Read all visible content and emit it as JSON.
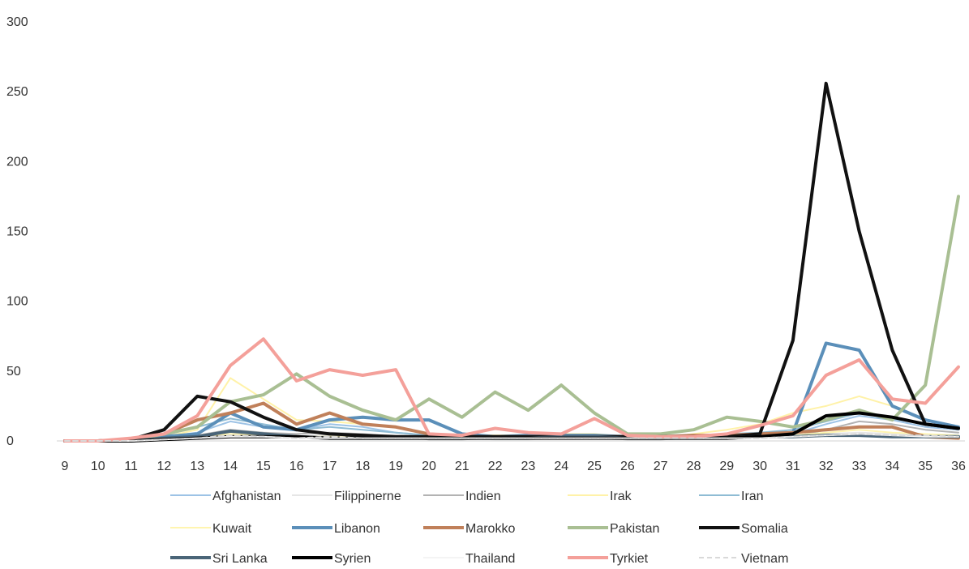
{
  "chart_data": {
    "type": "line",
    "title": "",
    "xlabel": "",
    "ylabel": "",
    "x": [
      9,
      10,
      11,
      12,
      13,
      14,
      15,
      16,
      17,
      18,
      19,
      20,
      21,
      22,
      23,
      24,
      25,
      26,
      27,
      28,
      29,
      30,
      31,
      32,
      33,
      34,
      35,
      36
    ],
    "ylim": [
      0,
      300
    ],
    "yticks": [
      0,
      50,
      100,
      150,
      200,
      250,
      300
    ],
    "grid": false,
    "legend_position": "bottom",
    "series": [
      {
        "name": "Afghanistan",
        "color": "#9dc3e6",
        "width": 2,
        "values": [
          0,
          0,
          1,
          3,
          6,
          14,
          10,
          8,
          12,
          10,
          6,
          4,
          3,
          2,
          2,
          3,
          3,
          2,
          2,
          3,
          3,
          4,
          5,
          12,
          18,
          15,
          10,
          8
        ]
      },
      {
        "name": "Filippinerne",
        "color": "#e6e6e6",
        "width": 2,
        "values": [
          0,
          0,
          1,
          2,
          3,
          5,
          4,
          3,
          4,
          3,
          2,
          2,
          2,
          1,
          1,
          2,
          2,
          1,
          1,
          2,
          2,
          3,
          4,
          5,
          6,
          5,
          4,
          3
        ]
      },
      {
        "name": "Indien",
        "color": "#b3b3b3",
        "width": 2,
        "values": [
          0,
          0,
          1,
          2,
          4,
          8,
          6,
          5,
          6,
          5,
          3,
          1,
          1,
          2,
          2,
          2,
          2,
          1,
          1,
          2,
          2,
          2,
          3,
          8,
          14,
          12,
          8,
          6
        ]
      },
      {
        "name": "Irak",
        "color": "#fff2a8",
        "width": 2,
        "values": [
          0,
          0,
          1,
          3,
          8,
          45,
          30,
          15,
          14,
          12,
          10,
          5,
          4,
          4,
          4,
          5,
          5,
          3,
          2,
          5,
          8,
          12,
          20,
          25,
          32,
          25,
          15,
          10
        ]
      },
      {
        "name": "Iran",
        "color": "#8fbcd4",
        "width": 2,
        "values": [
          0,
          0,
          1,
          4,
          10,
          16,
          12,
          8,
          10,
          8,
          6,
          4,
          3,
          3,
          3,
          3,
          4,
          3,
          3,
          4,
          5,
          6,
          8,
          14,
          20,
          16,
          12,
          10
        ]
      },
      {
        "name": "Kuwait",
        "color": "#fff5b0",
        "width": 2,
        "values": [
          0,
          0,
          1,
          2,
          3,
          5,
          4,
          3,
          3,
          3,
          2,
          2,
          2,
          2,
          2,
          2,
          2,
          2,
          2,
          2,
          2,
          3,
          4,
          6,
          8,
          6,
          5,
          4
        ]
      },
      {
        "name": "Libanon",
        "color": "#5b8fb9",
        "width": 4,
        "values": [
          0,
          0,
          1,
          3,
          5,
          20,
          10,
          8,
          15,
          17,
          15,
          15,
          5,
          3,
          4,
          4,
          4,
          3,
          3,
          3,
          4,
          5,
          6,
          70,
          65,
          25,
          15,
          10
        ]
      },
      {
        "name": "Marokko",
        "color": "#c0805a",
        "width": 4,
        "values": [
          0,
          0,
          1,
          5,
          15,
          20,
          27,
          12,
          20,
          12,
          10,
          5,
          3,
          3,
          3,
          3,
          3,
          3,
          3,
          4,
          4,
          5,
          6,
          8,
          10,
          10,
          3,
          2
        ]
      },
      {
        "name": "Pakistan",
        "color": "#a9bf93",
        "width": 4,
        "values": [
          0,
          0,
          1,
          5,
          10,
          28,
          33,
          48,
          32,
          22,
          15,
          30,
          17,
          35,
          22,
          40,
          20,
          5,
          5,
          8,
          17,
          14,
          10,
          15,
          22,
          15,
          40,
          175
        ]
      },
      {
        "name": "Somalia",
        "color": "#111111",
        "width": 4,
        "values": [
          0,
          0,
          1,
          8,
          32,
          28,
          17,
          8,
          5,
          4,
          3,
          3,
          3,
          3,
          3,
          3,
          3,
          3,
          3,
          3,
          3,
          5,
          72,
          256,
          150,
          65,
          12,
          9
        ]
      },
      {
        "name": "Sri Lanka",
        "color": "#4a6578",
        "width": 4,
        "values": [
          0,
          0,
          0,
          2,
          3,
          7,
          5,
          3,
          2,
          2,
          2,
          2,
          2,
          2,
          2,
          3,
          3,
          2,
          2,
          2,
          2,
          3,
          3,
          4,
          4,
          3,
          3,
          3
        ]
      },
      {
        "name": "Syrien",
        "color": "#000000",
        "width": 4,
        "values": [
          0,
          0,
          0,
          1,
          2,
          3,
          3,
          3,
          2,
          2,
          2,
          2,
          2,
          2,
          2,
          2,
          2,
          2,
          2,
          2,
          2,
          3,
          5,
          18,
          20,
          17,
          12,
          9
        ]
      },
      {
        "name": "Thailand",
        "color": "#f4f4f4",
        "width": 2,
        "values": [
          0,
          0,
          0,
          1,
          2,
          3,
          3,
          2,
          2,
          2,
          2,
          2,
          2,
          2,
          2,
          2,
          2,
          2,
          2,
          2,
          2,
          2,
          3,
          4,
          5,
          4,
          3,
          3
        ]
      },
      {
        "name": "Tyrkiet",
        "color": "#f4a09a",
        "width": 4,
        "values": [
          0,
          0,
          2,
          5,
          18,
          54,
          73,
          43,
          51,
          47,
          51,
          5,
          4,
          9,
          6,
          5,
          16,
          4,
          3,
          3,
          5,
          11,
          18,
          47,
          58,
          30,
          27,
          53
        ]
      },
      {
        "name": "Vietnam",
        "color": "#d9d9d9",
        "width": 2,
        "dash": true,
        "values": [
          0,
          0,
          0,
          1,
          2,
          4,
          3,
          2,
          3,
          2,
          2,
          2,
          2,
          2,
          2,
          2,
          2,
          2,
          2,
          2,
          2,
          2,
          3,
          4,
          5,
          4,
          4,
          3
        ]
      }
    ]
  }
}
